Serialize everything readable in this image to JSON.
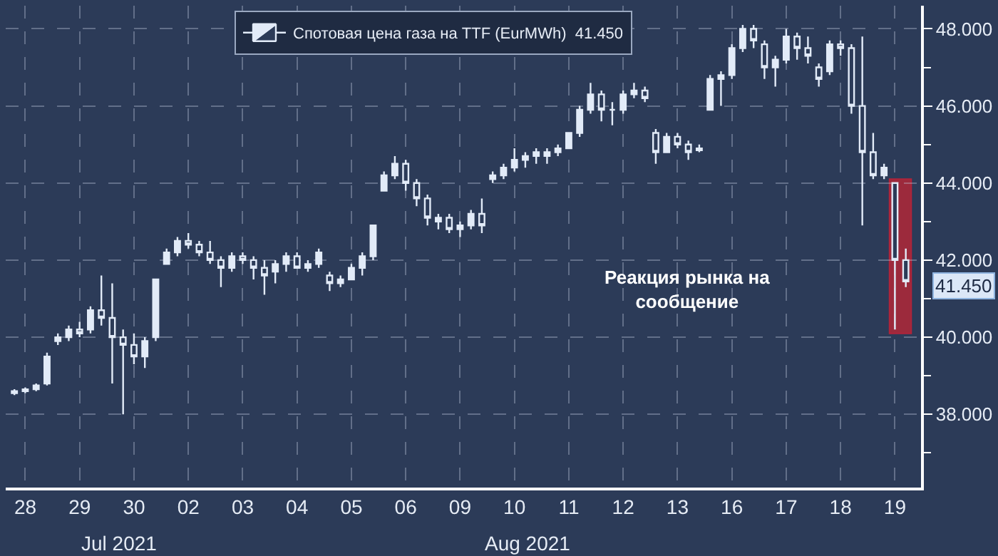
{
  "chart_data": {
    "type": "candlestick",
    "categories": [
      null,
      "28",
      null,
      null,
      null,
      null,
      "29",
      null,
      null,
      null,
      null,
      "30",
      null,
      null,
      null,
      null,
      "02",
      null,
      null,
      null,
      null,
      "03",
      null,
      null,
      null,
      null,
      "04",
      null,
      null,
      null,
      null,
      "05",
      null,
      null,
      null,
      null,
      "06",
      null,
      null,
      null,
      null,
      "09",
      null,
      null,
      null,
      null,
      "10",
      null,
      null,
      null,
      null,
      "11",
      null,
      null,
      null,
      null,
      "12",
      null,
      null,
      null,
      null,
      "13",
      null,
      null,
      null,
      null,
      "16",
      null,
      null,
      null,
      null,
      "17",
      null,
      null,
      null,
      null,
      "18",
      null,
      null,
      null,
      null,
      "19",
      null
    ],
    "series": [
      {
        "name": "Спотовая цена газа на TTF (EurMWh)  41.450",
        "color": "#e2ebf8",
        "ohlc": [
          [
            38.55,
            38.65,
            38.5,
            38.6
          ],
          [
            38.6,
            38.7,
            38.55,
            38.65
          ],
          [
            38.65,
            38.8,
            38.6,
            38.75
          ],
          [
            38.8,
            39.6,
            38.75,
            39.5
          ],
          [
            39.9,
            40.1,
            39.8,
            40.0
          ],
          [
            40.0,
            40.3,
            39.9,
            40.2
          ],
          [
            40.2,
            40.4,
            40.0,
            40.1
          ],
          [
            40.2,
            40.8,
            40.1,
            40.7
          ],
          [
            40.7,
            41.6,
            40.3,
            40.5
          ],
          [
            40.5,
            41.4,
            38.8,
            40.0
          ],
          [
            40.0,
            40.2,
            38.0,
            39.8
          ],
          [
            39.8,
            40.1,
            39.3,
            39.5
          ],
          [
            39.5,
            40.0,
            39.2,
            39.9
          ],
          [
            40.0,
            41.5,
            39.9,
            41.5
          ],
          [
            41.9,
            42.3,
            41.9,
            42.2
          ],
          [
            42.2,
            42.6,
            42.1,
            42.5
          ],
          [
            42.5,
            42.7,
            42.3,
            42.4
          ],
          [
            42.4,
            42.5,
            42.1,
            42.2
          ],
          [
            42.2,
            42.5,
            41.9,
            42.0
          ],
          [
            42.0,
            42.1,
            41.3,
            41.8
          ],
          [
            41.8,
            42.2,
            41.7,
            42.1
          ],
          [
            42.1,
            42.2,
            41.9,
            42.0
          ],
          [
            42.0,
            42.1,
            41.5,
            41.8
          ],
          [
            41.8,
            42.0,
            41.1,
            41.6
          ],
          [
            41.7,
            42.0,
            41.4,
            41.9
          ],
          [
            41.9,
            42.2,
            41.7,
            42.1
          ],
          [
            42.1,
            42.2,
            41.8,
            41.8
          ],
          [
            41.8,
            42.0,
            41.7,
            41.9
          ],
          [
            41.9,
            42.3,
            41.8,
            42.2
          ],
          [
            41.6,
            41.7,
            41.2,
            41.4
          ],
          [
            41.4,
            41.6,
            41.3,
            41.5
          ],
          [
            41.5,
            41.9,
            41.5,
            41.8
          ],
          [
            41.8,
            42.2,
            41.6,
            42.1
          ],
          [
            42.1,
            42.9,
            42.0,
            42.9
          ],
          [
            43.8,
            44.3,
            43.8,
            44.2
          ],
          [
            44.2,
            44.7,
            44.1,
            44.5
          ],
          [
            44.5,
            44.6,
            43.8,
            44.0
          ],
          [
            44.0,
            44.1,
            43.4,
            43.6
          ],
          [
            43.6,
            43.7,
            42.9,
            43.1
          ],
          [
            43.0,
            43.2,
            42.8,
            43.1
          ],
          [
            43.1,
            43.2,
            42.7,
            42.8
          ],
          [
            42.8,
            43.0,
            42.6,
            42.9
          ],
          [
            42.9,
            43.3,
            42.8,
            43.2
          ],
          [
            43.2,
            43.6,
            42.7,
            42.9
          ],
          [
            44.1,
            44.3,
            44.0,
            44.2
          ],
          [
            44.2,
            44.5,
            44.1,
            44.4
          ],
          [
            44.4,
            44.9,
            44.3,
            44.6
          ],
          [
            44.6,
            44.8,
            44.4,
            44.7
          ],
          [
            44.7,
            44.9,
            44.5,
            44.8
          ],
          [
            44.7,
            44.9,
            44.5,
            44.8
          ],
          [
            44.8,
            45.0,
            44.7,
            44.9
          ],
          [
            44.9,
            45.3,
            44.9,
            45.3
          ],
          [
            45.3,
            46.0,
            45.2,
            45.9
          ],
          [
            45.9,
            46.6,
            45.8,
            46.3
          ],
          [
            46.3,
            46.4,
            45.6,
            45.9
          ],
          [
            45.9,
            46.1,
            45.5,
            45.9
          ],
          [
            45.9,
            46.4,
            45.8,
            46.3
          ],
          [
            46.3,
            46.6,
            46.2,
            46.4
          ],
          [
            46.4,
            46.5,
            46.1,
            46.2
          ],
          [
            45.3,
            45.4,
            44.5,
            44.8
          ],
          [
            44.8,
            45.3,
            44.8,
            45.2
          ],
          [
            45.2,
            45.3,
            44.9,
            45.0
          ],
          [
            45.0,
            45.1,
            44.6,
            44.8
          ],
          [
            44.85,
            45.0,
            44.8,
            44.9
          ],
          [
            45.9,
            46.8,
            45.9,
            46.7
          ],
          [
            46.7,
            46.9,
            46.0,
            46.8
          ],
          [
            46.8,
            47.6,
            46.7,
            47.5
          ],
          [
            47.5,
            48.1,
            47.4,
            48.0
          ],
          [
            48.0,
            48.1,
            47.5,
            47.7
          ],
          [
            47.6,
            47.7,
            46.7,
            47.0
          ],
          [
            47.0,
            47.3,
            46.5,
            47.2
          ],
          [
            47.2,
            48.0,
            47.1,
            47.8
          ],
          [
            47.8,
            47.9,
            47.2,
            47.5
          ],
          [
            47.5,
            47.8,
            47.1,
            47.3
          ],
          [
            47.0,
            47.1,
            46.5,
            46.7
          ],
          [
            46.9,
            47.7,
            46.8,
            47.6
          ],
          [
            47.6,
            47.7,
            47.3,
            47.5
          ],
          [
            47.5,
            47.6,
            45.8,
            46.0
          ],
          [
            46.0,
            47.8,
            42.9,
            44.8
          ],
          [
            44.8,
            45.3,
            44.1,
            44.2
          ],
          [
            44.2,
            44.5,
            44.1,
            44.4
          ],
          [
            44.0,
            44.0,
            40.2,
            42.0
          ],
          [
            42.0,
            42.3,
            41.3,
            41.45
          ]
        ]
      }
    ],
    "ylim": [
      36.1,
      48.6
    ],
    "yticks": [
      {
        "value": 37,
        "label": null
      },
      {
        "value": 38,
        "label": "38.000"
      },
      {
        "value": 39,
        "label": null
      },
      {
        "value": 40,
        "label": "40.000"
      },
      {
        "value": 41,
        "label": null
      },
      {
        "value": 42,
        "label": "42.000"
      },
      {
        "value": 43,
        "label": null
      },
      {
        "value": 44,
        "label": "44.000"
      },
      {
        "value": 45,
        "label": null
      },
      {
        "value": 46,
        "label": "46.000"
      },
      {
        "value": 47,
        "label": null
      },
      {
        "value": 48,
        "label": "48.000"
      }
    ],
    "annotations": [
      "Jul 2021",
      "Aug 2021",
      "Реакция рынка на\nсообщение",
      "41.450"
    ],
    "grid": true,
    "legend": "top"
  }
}
